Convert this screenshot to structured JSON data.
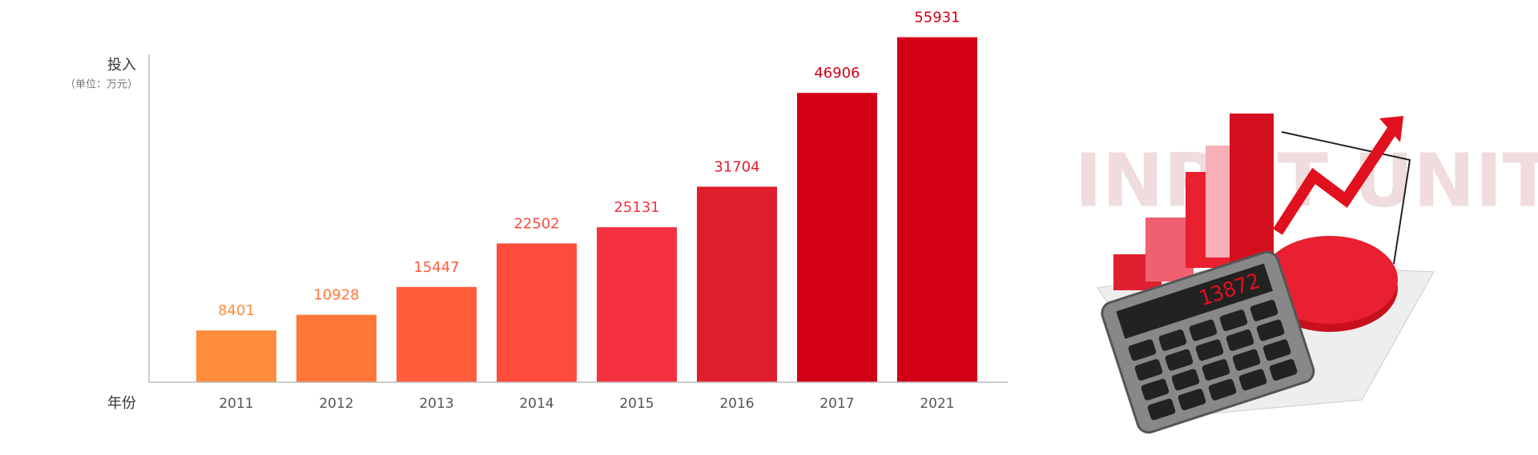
{
  "chart_data": {
    "type": "bar",
    "y_label": "投入",
    "y_unit": "（单位：万元）",
    "x_label": "年份",
    "categories": [
      "2011",
      "2012",
      "2013",
      "2014",
      "2015",
      "2016",
      "2017",
      "2021"
    ],
    "values": [
      8401,
      10928,
      15447,
      22502,
      25131,
      31704,
      46906,
      55931
    ],
    "colors": [
      "#ff8c3a",
      "#ff7738",
      "#ff5d3b",
      "#ff4b3c",
      "#f5303f",
      "#e01d2c",
      "#d40016",
      "#d40016"
    ],
    "ylim": [
      0,
      56000
    ],
    "grid": false
  },
  "decoration": {
    "watermark": "INPUT UNIT",
    "calculator_display": "13872"
  }
}
